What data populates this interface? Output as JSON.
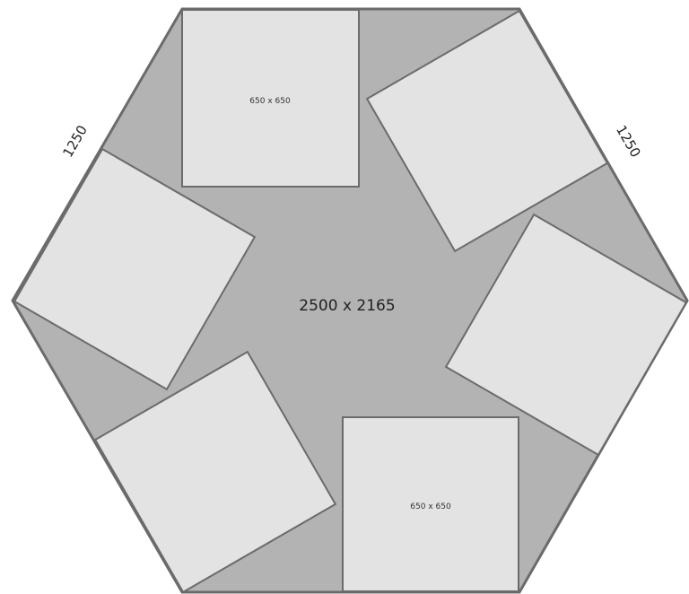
{
  "diagram": {
    "overall_size_label": "2500 x 2165",
    "side_length_labels": [
      "1250",
      "1250"
    ],
    "tile_size_labels": [
      "650 x 650",
      "650 x 650"
    ],
    "colors": {
      "hexagon_fill": "#b3b3b3",
      "hexagon_stroke": "#6b6b6b",
      "tile_fill": "#e3e3e3",
      "tile_stroke": "#6b6b6b",
      "text": "#222222"
    }
  }
}
